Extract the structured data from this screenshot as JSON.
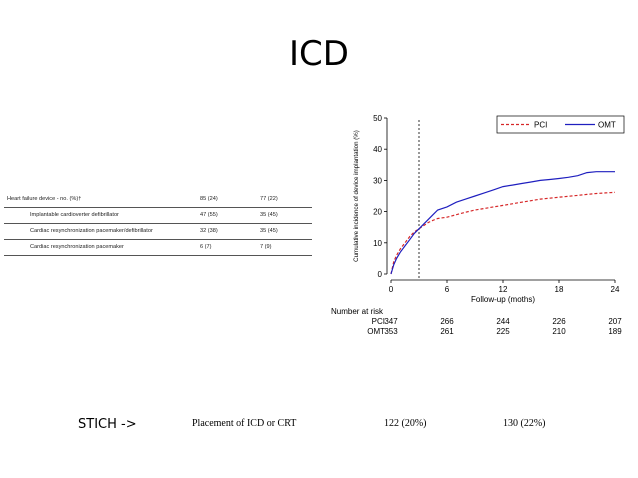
{
  "slide": {
    "title": "ICD"
  },
  "table": {
    "header": {
      "label": "Heart failure device - no. (%)†",
      "a": "85 (24)",
      "b": "77 (22)"
    },
    "rows": [
      {
        "label": "Implantable cardioverter defibrillator",
        "a": "47 (55)",
        "b": "35 (45)"
      },
      {
        "label": "Cardiac resynchronization pacemaker/defibrillator",
        "a": "32 (38)",
        "b": "35 (45)"
      },
      {
        "label": "Cardiac resynchronization pacemaker",
        "a": "6 (7)",
        "b": "7 (9)"
      }
    ]
  },
  "chart_data": {
    "type": "line",
    "ylabel": "Cumulative incidence of device implantation (%)",
    "xlabel": "Follow-up (moths)",
    "xlim": [
      0,
      24
    ],
    "ylim": [
      0,
      50
    ],
    "xticks": [
      0,
      6,
      12,
      18,
      24
    ],
    "yticks": [
      0,
      10,
      20,
      30,
      40,
      50
    ],
    "vline_x": 3,
    "legend_position": "top-right",
    "series": [
      {
        "name": "PCI",
        "color": "#d62728",
        "style": "dashed",
        "x": [
          0,
          0.3,
          0.6,
          1,
          1.5,
          2,
          2.5,
          3,
          3.5,
          4,
          4.5,
          5,
          6,
          7,
          8,
          9,
          10,
          11,
          12,
          13,
          14,
          15,
          16,
          17,
          18,
          19,
          20,
          21,
          22,
          23,
          24
        ],
        "y": [
          0,
          4,
          6,
          8,
          10,
          12,
          13.5,
          14.5,
          15.5,
          16.5,
          17.2,
          17.8,
          18.2,
          19,
          19.8,
          20.5,
          21,
          21.5,
          22,
          22.5,
          23,
          23.5,
          24,
          24.3,
          24.6,
          24.9,
          25.2,
          25.5,
          25.8,
          26,
          26.2
        ]
      },
      {
        "name": "OMT",
        "color": "#1f1fbf",
        "style": "solid",
        "x": [
          0,
          0.3,
          0.6,
          1,
          1.5,
          2,
          2.5,
          3,
          3.5,
          4,
          4.5,
          5,
          6,
          7,
          8,
          9,
          10,
          11,
          12,
          13,
          14,
          15,
          16,
          17,
          18,
          19,
          20,
          21,
          22,
          23,
          24
        ],
        "y": [
          0,
          3,
          5,
          7,
          9,
          11,
          13,
          14.5,
          16,
          17.5,
          19,
          20.5,
          21.5,
          23,
          24,
          25,
          26,
          27,
          28,
          28.5,
          29,
          29.5,
          30,
          30.3,
          30.6,
          31,
          31.5,
          32.5,
          32.8,
          32.8,
          32.8
        ]
      }
    ]
  },
  "risk": {
    "title": "Number at risk",
    "rows": [
      {
        "name": "PCI",
        "values": [
          "347",
          "266",
          "244",
          "226",
          "207"
        ]
      },
      {
        "name": "OMT",
        "values": [
          "353",
          "261",
          "225",
          "210",
          "189"
        ]
      }
    ]
  },
  "stich": {
    "label": "STICH ->",
    "row_label": "Placement of ICD or CRT",
    "v1": "122 (20%)",
    "v2": "130 (22%)"
  }
}
